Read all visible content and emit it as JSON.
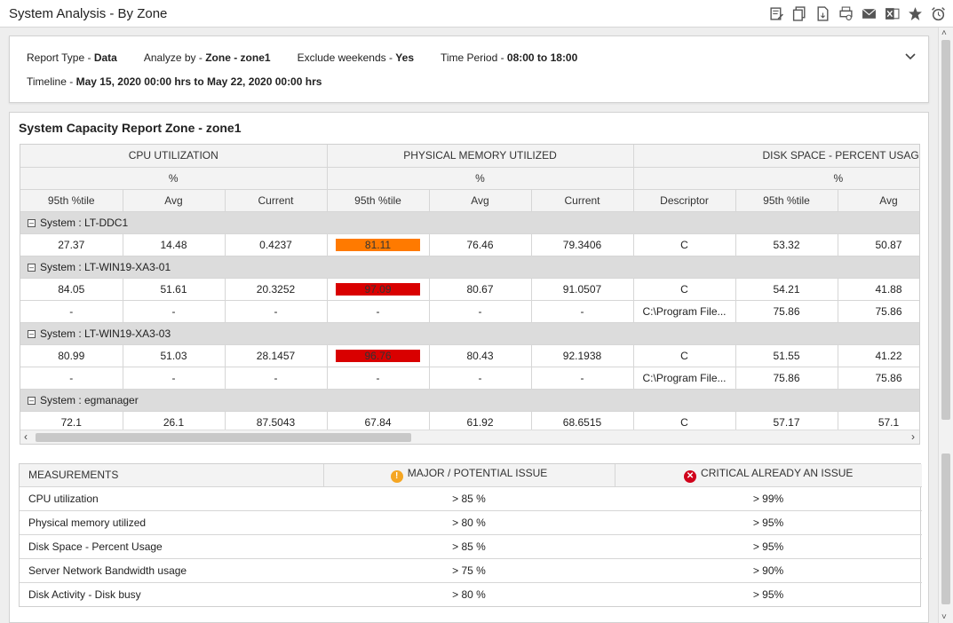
{
  "window": {
    "title": "System Analysis - By Zone"
  },
  "filters": {
    "report_type_label": "Report Type - ",
    "report_type_value": "Data",
    "analyze_by_label": "Analyze by - ",
    "analyze_by_value": "Zone - zone1",
    "exclude_weekends_label": "Exclude weekends - ",
    "exclude_weekends_value": "Yes",
    "time_period_label": "Time Period - ",
    "time_period_value": "08:00 to 18:00",
    "timeline_label": "Timeline - ",
    "timeline_value": "May 15, 2020 00:00 hrs to May 22, 2020 00:00 hrs"
  },
  "report": {
    "title": "System Capacity Report Zone - zone1",
    "groups": {
      "cpu": "CPU UTILIZATION",
      "memory": "PHYSICAL MEMORY UTILIZED",
      "disk": "DISK SPACE - PERCENT USAGE",
      "unit": "%"
    },
    "columns": {
      "p95": "95th %tile",
      "avg": "Avg",
      "current": "Current",
      "descriptor": "Descriptor"
    },
    "systems": [
      {
        "label": "System : LT-DDC1",
        "rows": [
          {
            "cpu95": "27.37",
            "cpuavg": "14.48",
            "cpucur": "0.4237",
            "mem95": "81.11",
            "memavg": "76.46",
            "memcur": "79.3406",
            "desc": "C",
            "disk95": "53.32",
            "diskavg": "50.87"
          }
        ]
      },
      {
        "label": "System : LT-WIN19-XA3-01",
        "rows": [
          {
            "cpu95": "84.05",
            "cpuavg": "51.61",
            "cpucur": "20.3252",
            "mem95": "97.09",
            "memavg": "80.67",
            "memcur": "91.0507",
            "desc": "C",
            "disk95": "54.21",
            "diskavg": "41.88"
          },
          {
            "cpu95": "-",
            "cpuavg": "-",
            "cpucur": "-",
            "mem95": "-",
            "memavg": "-",
            "memcur": "-",
            "desc": "C:\\Program File...",
            "disk95": "75.86",
            "diskavg": "75.86"
          }
        ]
      },
      {
        "label": "System : LT-WIN19-XA3-03",
        "rows": [
          {
            "cpu95": "80.99",
            "cpuavg": "51.03",
            "cpucur": "28.1457",
            "mem95": "96.76",
            "memavg": "80.43",
            "memcur": "92.1938",
            "desc": "C",
            "disk95": "51.55",
            "diskavg": "41.22"
          },
          {
            "cpu95": "-",
            "cpuavg": "-",
            "cpucur": "-",
            "mem95": "-",
            "memavg": "-",
            "memcur": "-",
            "desc": "C:\\Program File...",
            "disk95": "75.86",
            "diskavg": "75.86"
          }
        ]
      },
      {
        "label": "System : egmanager",
        "rows": [
          {
            "cpu95": "72.1",
            "cpuavg": "26.1",
            "cpucur": "87.5043",
            "mem95": "67.84",
            "memavg": "61.92",
            "memcur": "68.6515",
            "desc": "C",
            "disk95": "57.17",
            "diskavg": "57.1"
          }
        ]
      }
    ]
  },
  "legend": {
    "col_measurements": "MEASUREMENTS",
    "col_major": "MAJOR / POTENTIAL ISSUE",
    "col_critical": "CRITICAL ALREADY AN ISSUE",
    "rows": [
      {
        "measure": "CPU utilization",
        "major": "> 85 %",
        "critical": "> 99%"
      },
      {
        "measure": "Physical memory utilized",
        "major": "> 80 %",
        "critical": "> 95%"
      },
      {
        "measure": "Disk Space - Percent Usage",
        "major": "> 85 %",
        "critical": "> 95%"
      },
      {
        "measure": "Server Network Bandwidth usage",
        "major": "> 75 %",
        "critical": "> 90%"
      },
      {
        "measure": "Disk Activity - Disk busy",
        "major": "> 80 %",
        "critical": "> 95%"
      }
    ]
  },
  "colors": {
    "major": "#ff7a00",
    "critical": "#d90000"
  }
}
